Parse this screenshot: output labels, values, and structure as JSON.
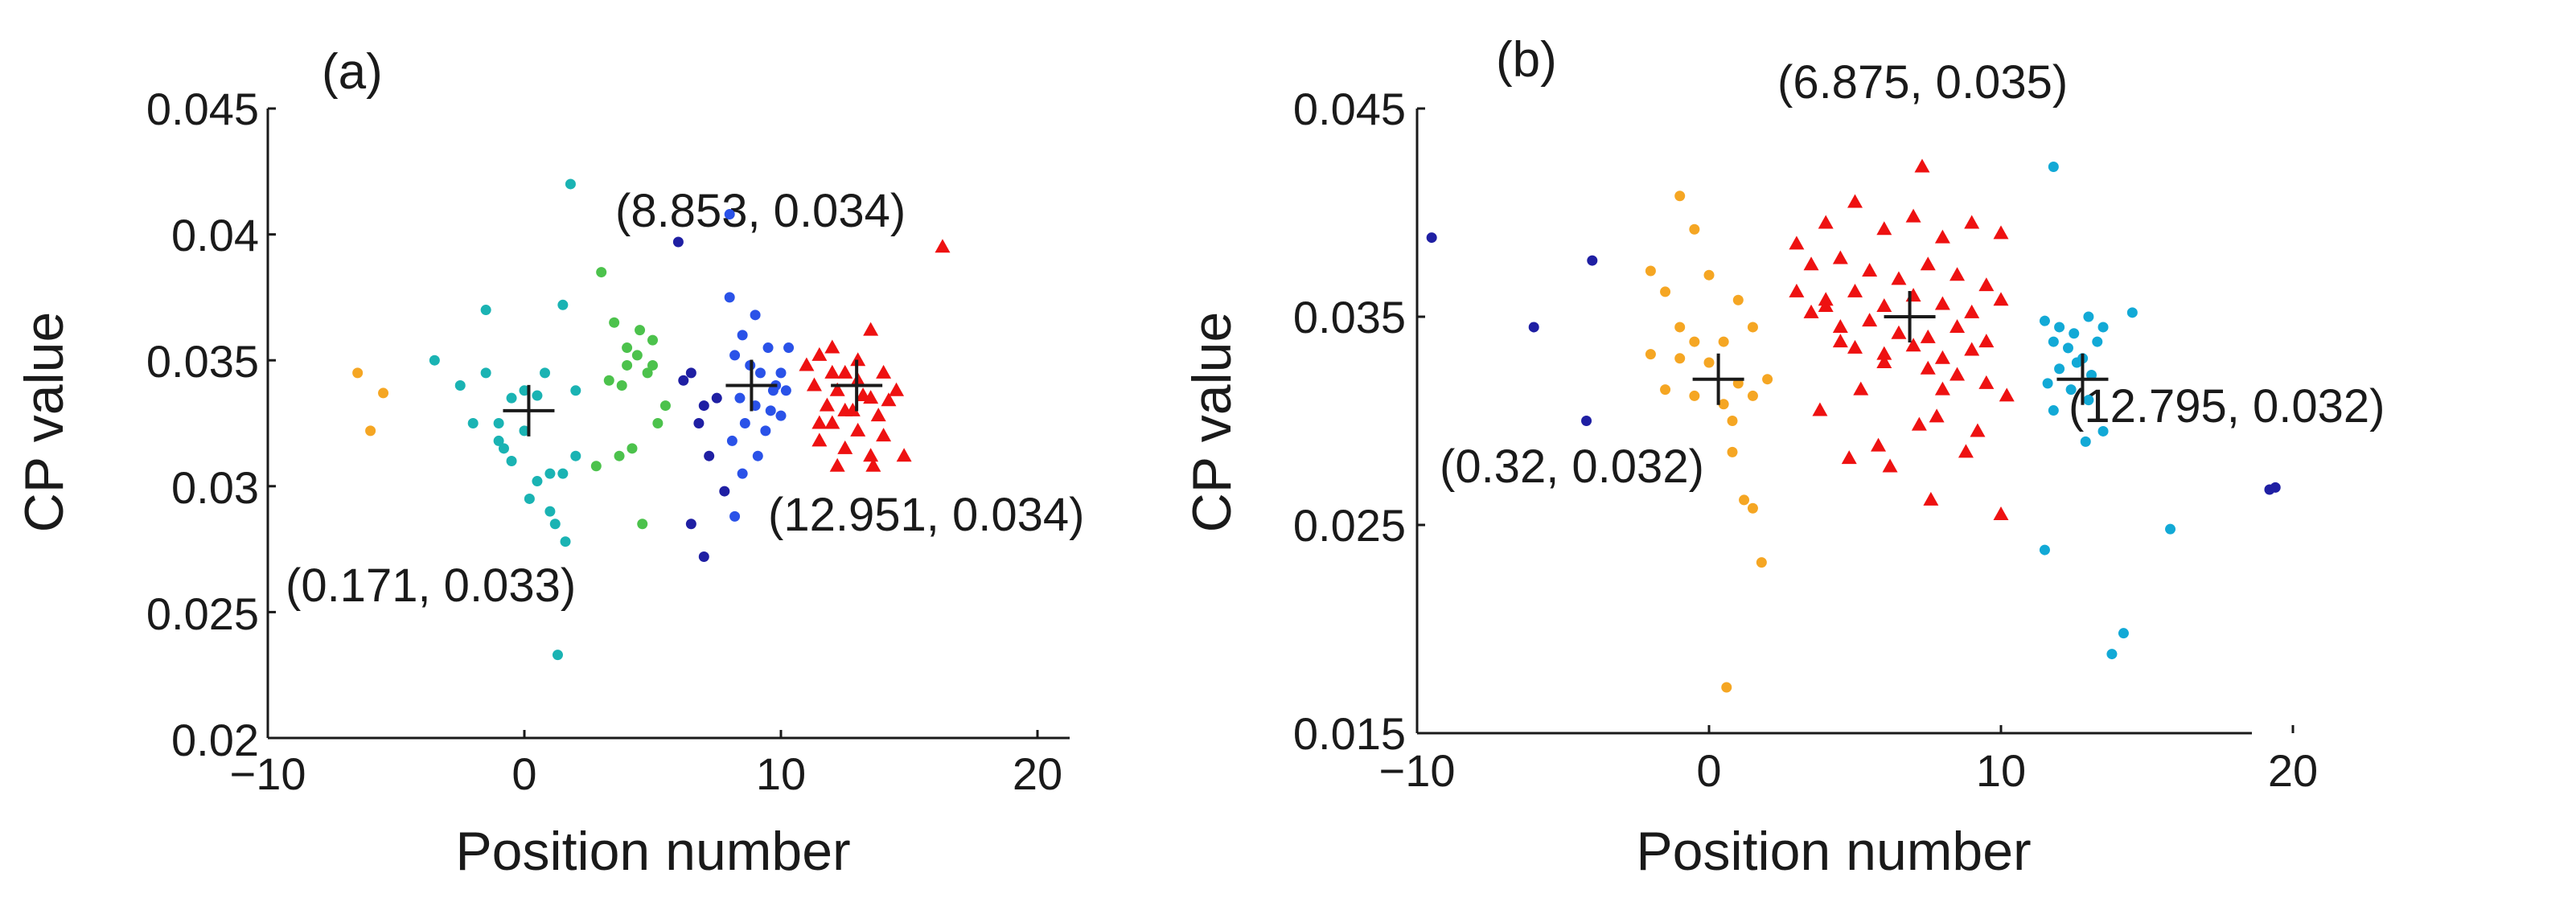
{
  "chart_data": [
    {
      "type": "scatter",
      "panel_label": "(a)",
      "xlabel": "Position number",
      "ylabel": "CP value",
      "xlim": [
        -10,
        20
      ],
      "ylim": [
        0.02,
        0.045
      ],
      "xticks": [
        -10,
        0,
        10,
        20
      ],
      "xtick_labels": [
        "−10",
        "0",
        "10",
        "20"
      ],
      "yticks": [
        0.02,
        0.025,
        0.03,
        0.035,
        0.04,
        0.045
      ],
      "ytick_labels": [
        "0.02",
        "0.025",
        "0.03",
        "0.035",
        "0.04",
        "0.045"
      ],
      "series": [
        {
          "name": "cluster-orange",
          "color": "#f5a623",
          "marker": "dot",
          "x": [
            -6.5,
            -5.5,
            -6
          ],
          "y": [
            0.0345,
            0.0337,
            0.0322
          ]
        },
        {
          "name": "cluster-teal",
          "color": "#1ab3b3",
          "marker": "dot",
          "x": [
            -3.5,
            -2.5,
            -1.5,
            -0.5,
            0.5,
            1.5,
            -2,
            -1,
            0,
            1,
            2,
            -1.5,
            -0.5,
            0.5,
            1,
            -1,
            0,
            1.5,
            0.2,
            1.2,
            -0.8,
            0.8,
            2,
            1.6,
            1.3
          ],
          "y": [
            0.035,
            0.034,
            0.037,
            0.0335,
            0.0336,
            0.0372,
            0.0325,
            0.0318,
            0.0322,
            0.0305,
            0.0338,
            0.0345,
            0.031,
            0.0302,
            0.029,
            0.0325,
            0.0338,
            0.0305,
            0.0295,
            0.0285,
            0.0315,
            0.0345,
            0.0312,
            0.0278,
            0.0233
          ]
        },
        {
          "name": "cluster-teal-high",
          "color": "#1ab3b3",
          "marker": "dot",
          "x": [
            1.8
          ],
          "y": [
            0.042
          ]
        },
        {
          "name": "cluster-green",
          "color": "#4cc24c",
          "marker": "dot",
          "x": [
            3,
            3.5,
            4,
            4.5,
            5,
            4,
            3.8,
            4.8,
            5.2,
            3.3,
            4.2,
            5.5,
            4.6,
            3.7,
            2.8,
            5,
            4.4
          ],
          "y": [
            0.0385,
            0.0365,
            0.0355,
            0.0362,
            0.0358,
            0.0348,
            0.034,
            0.0345,
            0.0325,
            0.0342,
            0.0315,
            0.0332,
            0.0285,
            0.0312,
            0.0308,
            0.0348,
            0.0352
          ]
        },
        {
          "name": "cluster-dark-blue",
          "color": "#1f1fa3",
          "marker": "dot",
          "x": [
            6,
            6.5,
            7,
            7.5,
            6.2,
            6.8,
            7.2,
            6.5,
            7.8,
            7
          ],
          "y": [
            0.0397,
            0.0345,
            0.0332,
            0.0335,
            0.0342,
            0.0325,
            0.0312,
            0.0285,
            0.0298,
            0.0272
          ]
        },
        {
          "name": "cluster-blue",
          "color": "#2a52e8",
          "marker": "dot",
          "x": [
            8,
            8.5,
            9,
            9.5,
            10,
            8.2,
            8.8,
            9.2,
            9.8,
            10.2,
            8.4,
            9,
            9.6,
            10,
            8.6,
            9.4,
            8.1,
            10.3,
            9.1,
            8.5,
            8.2,
            9.7,
            8
          ],
          "y": [
            0.0375,
            0.036,
            0.0368,
            0.0355,
            0.0345,
            0.0352,
            0.0348,
            0.0345,
            0.034,
            0.0338,
            0.0335,
            0.0332,
            0.033,
            0.0328,
            0.0325,
            0.0322,
            0.0318,
            0.0355,
            0.0312,
            0.0305,
            0.0288,
            0.0338,
            0.0408
          ]
        },
        {
          "name": "cluster-red",
          "color": "#ee1111",
          "marker": "triangle",
          "x": [
            11,
            11.5,
            12,
            12.5,
            13,
            13.5,
            14,
            14.5,
            11.3,
            12.2,
            13.2,
            14.2,
            11.8,
            12.8,
            13.8,
            12,
            13,
            14,
            11.5,
            12.5,
            13.5,
            12.2,
            13.6,
            14.8,
            12,
            13,
            16.3,
            11.5,
            12.5,
            13.5
          ],
          "y": [
            0.0348,
            0.0352,
            0.0355,
            0.0345,
            0.035,
            0.0362,
            0.0345,
            0.0338,
            0.034,
            0.0338,
            0.0336,
            0.0334,
            0.0332,
            0.033,
            0.0328,
            0.0325,
            0.0322,
            0.032,
            0.0318,
            0.0315,
            0.0312,
            0.0308,
            0.0308,
            0.0312,
            0.0345,
            0.0342,
            0.0395,
            0.0325,
            0.033,
            0.0335
          ]
        }
      ],
      "centroids": [
        {
          "x": 0.171,
          "y": 0.033,
          "label": "(0.171, 0.033)"
        },
        {
          "x": 8.853,
          "y": 0.034,
          "label": "(8.853, 0.034)"
        },
        {
          "x": 12.951,
          "y": 0.034,
          "label": "(12.951, 0.034)"
        }
      ]
    },
    {
      "type": "scatter",
      "panel_label": "(b)",
      "xlabel": "Position number",
      "ylabel": "CP value",
      "xlim": [
        -10,
        20
      ],
      "ylim": [
        0.015,
        0.045
      ],
      "xticks": [
        -10,
        0,
        10,
        20
      ],
      "xtick_labels": [
        "−10",
        "0",
        "10",
        "20"
      ],
      "yticks": [
        0.015,
        0.025,
        0.035,
        0.045
      ],
      "ytick_labels": [
        "0.015",
        "0.025",
        "0.035",
        "0.045"
      ],
      "series": [
        {
          "name": "cluster-dark-blue",
          "color": "#1f1fa3",
          "marker": "dot",
          "x": [
            -9.5,
            -6,
            -4,
            -4.2,
            19.2,
            19.4
          ],
          "y": [
            0.0388,
            0.0345,
            0.0377,
            0.03,
            0.0267,
            0.0268
          ]
        },
        {
          "name": "cluster-orange",
          "color": "#f5a623",
          "marker": "dot",
          "x": [
            -1,
            -0.5,
            -2,
            -1.5,
            0,
            1,
            -1,
            -0.5,
            0.5,
            1.5,
            -2,
            -1,
            0,
            1,
            2,
            -1.5,
            -0.5,
            0.5,
            1.5,
            0.8,
            1.2,
            1.5,
            1.8,
            0.8,
            0.6
          ],
          "y": [
            0.0408,
            0.0392,
            0.0372,
            0.0362,
            0.037,
            0.0358,
            0.0345,
            0.0338,
            0.0338,
            0.0345,
            0.0332,
            0.033,
            0.0328,
            0.0318,
            0.032,
            0.0315,
            0.0312,
            0.0308,
            0.0312,
            0.03,
            0.0262,
            0.0258,
            0.0232,
            0.0285,
            0.0172
          ]
        },
        {
          "name": "cluster-red",
          "color": "#ee1111",
          "marker": "triangle",
          "x": [
            3,
            4,
            5,
            6,
            7,
            8,
            9,
            10,
            3.5,
            4.5,
            5.5,
            6.5,
            7.5,
            8.5,
            9.5,
            3,
            4,
            5,
            6,
            7,
            8,
            9,
            10,
            4.5,
            5.5,
            6.5,
            7.5,
            8.5,
            9.5,
            5,
            6,
            7,
            8,
            9,
            3.5,
            4.5,
            6,
            7.5,
            8.5,
            9.5,
            10.2,
            3.8,
            5.2,
            7.8,
            9.2,
            4.8,
            7.2,
            5.8,
            8.8,
            6.2,
            7.6,
            4,
            7.3,
            8,
            10
          ],
          "y": [
            0.0385,
            0.0395,
            0.0405,
            0.0392,
            0.0398,
            0.0388,
            0.0395,
            0.039,
            0.0375,
            0.0378,
            0.0372,
            0.0368,
            0.0375,
            0.037,
            0.0365,
            0.0362,
            0.0358,
            0.0362,
            0.0355,
            0.036,
            0.0356,
            0.0352,
            0.0358,
            0.0345,
            0.0348,
            0.0342,
            0.034,
            0.0345,
            0.0338,
            0.0335,
            0.0332,
            0.0336,
            0.033,
            0.0334,
            0.0352,
            0.0338,
            0.0328,
            0.0325,
            0.0322,
            0.0318,
            0.0312,
            0.0305,
            0.0315,
            0.0302,
            0.0295,
            0.0282,
            0.0298,
            0.0288,
            0.0285,
            0.0278,
            0.0262,
            0.0355,
            0.0422,
            0.0315,
            0.0255
          ]
        },
        {
          "name": "cluster-cyan",
          "color": "#12a9d6",
          "marker": "dot",
          "x": [
            11.5,
            12,
            12.5,
            13,
            13.5,
            11.8,
            12.3,
            12.8,
            13.3,
            12,
            12.6,
            13.1,
            11.6,
            12.4,
            13,
            11.8,
            13.5,
            14.5,
            11.5,
            15.8,
            14.2,
            13.8,
            11.8,
            12.9
          ],
          "y": [
            0.0348,
            0.0345,
            0.0342,
            0.035,
            0.0345,
            0.0338,
            0.0335,
            0.033,
            0.0338,
            0.0325,
            0.0328,
            0.0322,
            0.0318,
            0.0315,
            0.031,
            0.0305,
            0.0295,
            0.0352,
            0.0238,
            0.0248,
            0.0198,
            0.0188,
            0.0422,
            0.029
          ]
        }
      ],
      "centroids": [
        {
          "x": 0.32,
          "y": 0.032,
          "label": "(0.32, 0.032)"
        },
        {
          "x": 6.875,
          "y": 0.035,
          "label": "(6.875, 0.035)"
        },
        {
          "x": 12.795,
          "y": 0.032,
          "label": "(12.795, 0.032)"
        }
      ]
    }
  ]
}
